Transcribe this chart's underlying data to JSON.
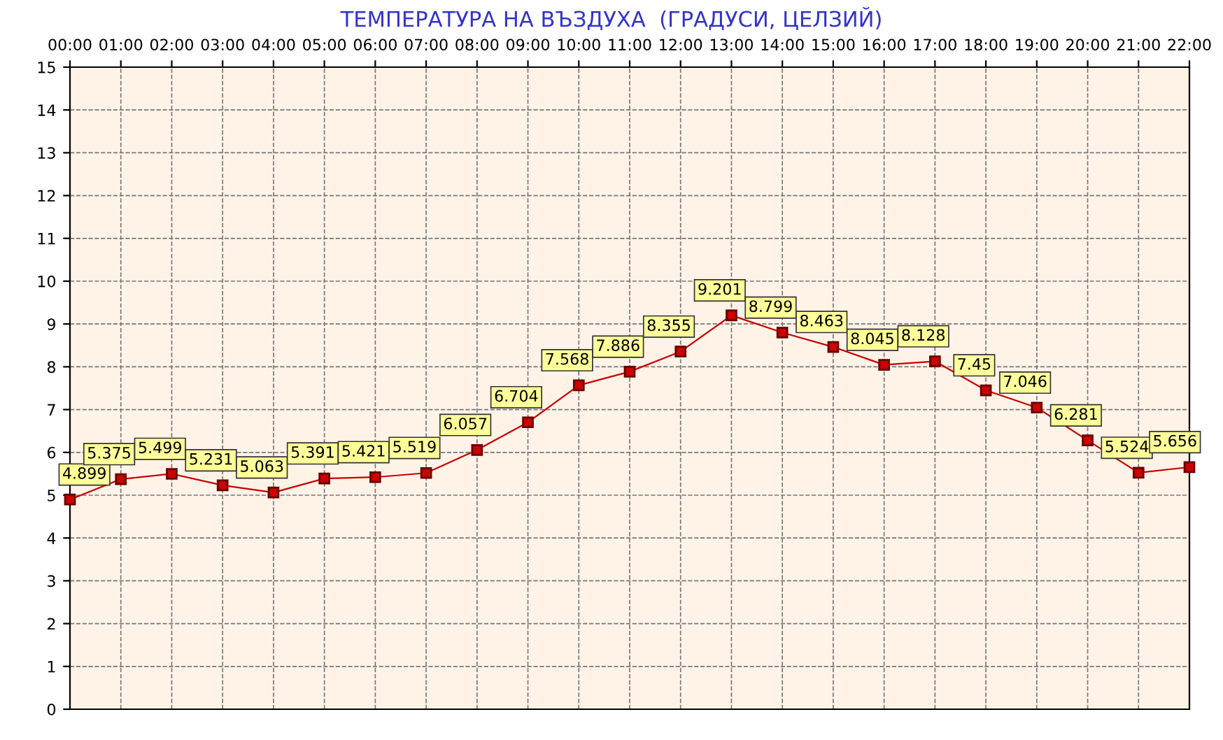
{
  "chart_data": {
    "type": "line",
    "title": "ТЕМПЕРАТУРА НА ВЪЗДУХА  (ГРАДУСИ, ЦЕЛЗИЙ)",
    "categories": [
      "00:00",
      "01:00",
      "02:00",
      "03:00",
      "04:00",
      "05:00",
      "06:00",
      "07:00",
      "08:00",
      "09:00",
      "10:00",
      "11:00",
      "12:00",
      "13:00",
      "14:00",
      "15:00",
      "16:00",
      "17:00",
      "18:00",
      "19:00",
      "20:00",
      "21:00",
      "22:00"
    ],
    "series": [
      {
        "color": "#cc0000",
        "values": [
          4.899,
          5.375,
          5.499,
          5.231,
          5.063,
          5.391,
          5.421,
          5.519,
          6.057,
          6.704,
          7.568,
          7.886,
          8.355,
          9.201,
          8.799,
          8.463,
          8.045,
          8.128,
          7.45,
          7.046,
          6.281,
          5.524,
          5.656
        ]
      }
    ],
    "ylim": [
      0,
      15
    ],
    "yticks": [
      0,
      1,
      2,
      3,
      4,
      5,
      6,
      7,
      8,
      9,
      10,
      11,
      12,
      13,
      14,
      15
    ],
    "grid": true,
    "marker": "square",
    "line_style": "solid",
    "data_labels": true,
    "legend": false
  }
}
